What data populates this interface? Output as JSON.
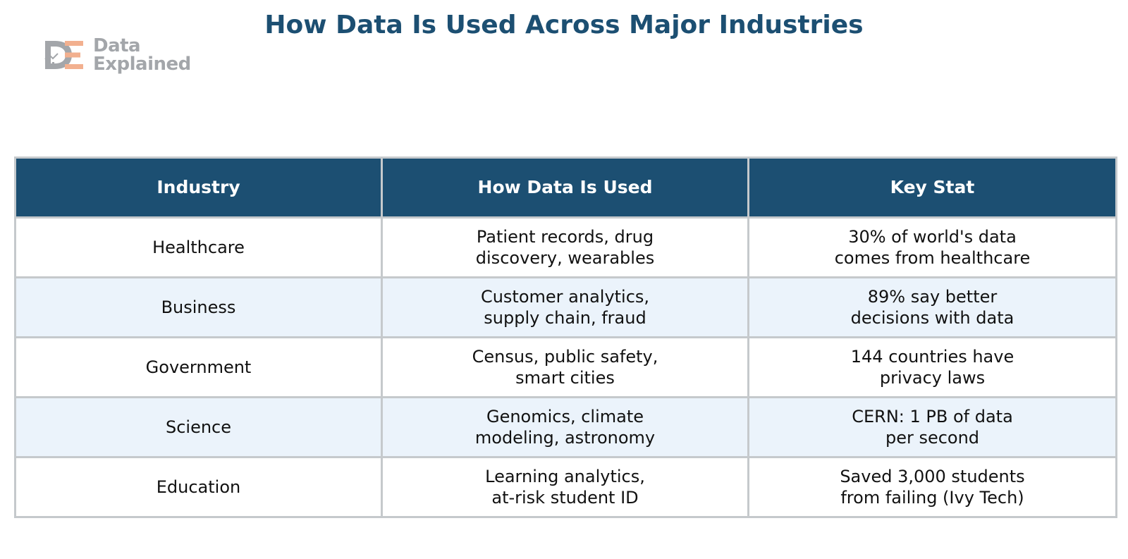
{
  "title": "How Data Is Used Across Major Industries",
  "logo": {
    "line1": "Data",
    "line2": "Explained",
    "monogram": "DE"
  },
  "colors": {
    "header_bg": "#1c4f72",
    "title": "#1c4f72",
    "row_alt_bg": "#ebf3fb",
    "logo_orange": "#f2b08f",
    "logo_gray": "#a3a6aa"
  },
  "table": {
    "headers": [
      "Industry",
      "How Data Is Used",
      "Key Stat"
    ],
    "rows": [
      {
        "industry": "Healthcare",
        "usage": [
          "Patient records, drug",
          "discovery, wearables"
        ],
        "stat": [
          "30% of world's data",
          "comes from healthcare"
        ]
      },
      {
        "industry": "Business",
        "usage": [
          "Customer analytics,",
          "supply chain, fraud"
        ],
        "stat": [
          "89% say better",
          "decisions with data"
        ]
      },
      {
        "industry": "Government",
        "usage": [
          "Census, public safety,",
          "smart cities"
        ],
        "stat": [
          "144 countries have",
          "privacy laws"
        ]
      },
      {
        "industry": "Science",
        "usage": [
          "Genomics, climate",
          "modeling, astronomy"
        ],
        "stat": [
          "CERN: 1 PB of data",
          "per second"
        ]
      },
      {
        "industry": "Education",
        "usage": [
          "Learning analytics,",
          "at-risk student ID"
        ],
        "stat": [
          "Saved 3,000 students",
          "from failing (Ivy Tech)"
        ]
      }
    ]
  }
}
